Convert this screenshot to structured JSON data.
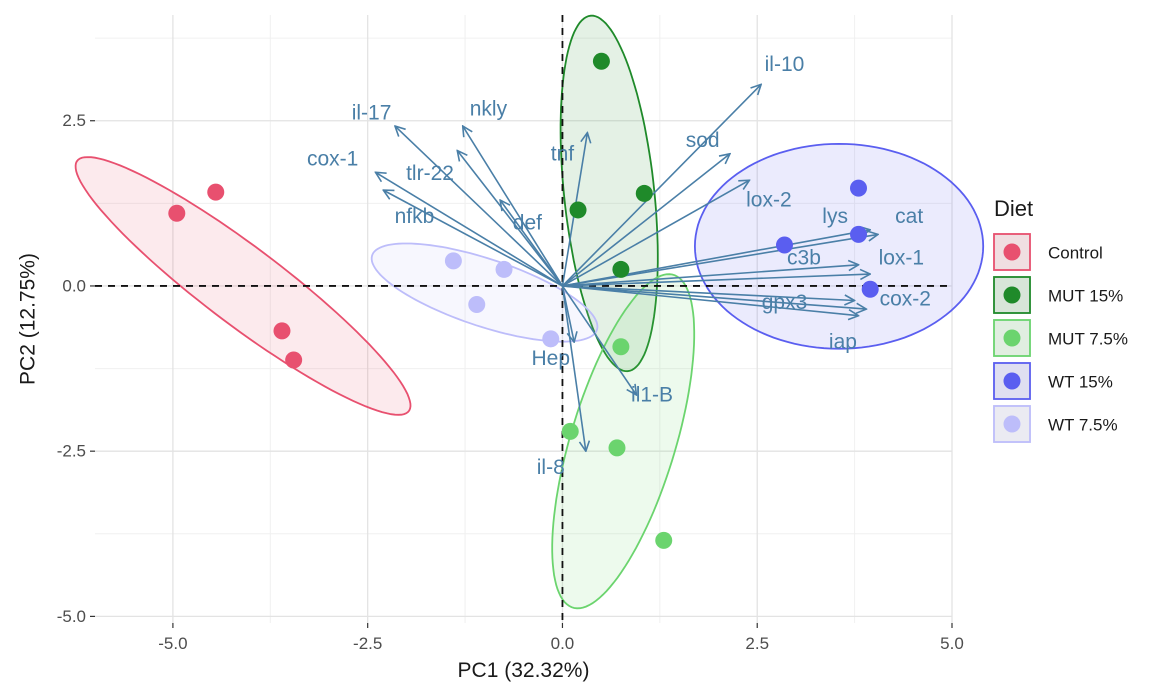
{
  "chart_data": {
    "type": "scatter",
    "subtype": "pca-biplot",
    "xlabel": "PC1 (32.32%)",
    "ylabel": "PC2 (12.75%)",
    "xlim": [
      -6,
      5
    ],
    "ylim": [
      -5.1,
      4.1
    ],
    "xticks": [
      -5.0,
      -2.5,
      0.0,
      2.5,
      5.0
    ],
    "yticks": [
      -5.0,
      -2.5,
      0.0,
      2.5
    ],
    "xtick_labels": [
      "-5.0",
      "-2.5",
      "0.0",
      "2.5",
      "5.0"
    ],
    "ytick_labels": [
      "-5.0",
      "-2.5",
      "0.0",
      "2.5"
    ],
    "grid": true,
    "reference_lines": {
      "x": 0,
      "y": 0,
      "style": "dashed"
    },
    "legend": {
      "title": "Diet",
      "position": "right"
    },
    "series": [
      {
        "name": "Control",
        "color": "#e8506f",
        "points": [
          [
            -4.95,
            1.1
          ],
          [
            -4.45,
            1.42
          ],
          [
            -3.6,
            -0.68
          ],
          [
            -3.45,
            -1.12
          ]
        ],
        "ellipse": {
          "center": [
            -4.1,
            0.0
          ],
          "semi_major": 2.85,
          "semi_minor": 0.55,
          "angle_deg": -42
        }
      },
      {
        "name": "MUT 15%",
        "color": "#1f8a2a",
        "points": [
          [
            0.5,
            3.4
          ],
          [
            0.2,
            1.15
          ],
          [
            1.05,
            1.4
          ],
          [
            0.75,
            0.25
          ]
        ],
        "ellipse": {
          "center": [
            0.6,
            1.4
          ],
          "semi_major": 2.7,
          "semi_minor": 0.58,
          "angle_deg": 95
        }
      },
      {
        "name": "MUT 7.5%",
        "color": "#6bd46e",
        "points": [
          [
            0.75,
            -0.92
          ],
          [
            0.1,
            -2.2
          ],
          [
            0.7,
            -2.45
          ],
          [
            1.3,
            -3.85
          ]
        ],
        "ellipse": {
          "center": [
            0.78,
            -2.35
          ],
          "semi_major": 2.6,
          "semi_minor": 0.68,
          "angle_deg": 76
        }
      },
      {
        "name": "WT 15%",
        "color": "#5a5ef0",
        "points": [
          [
            3.8,
            1.48
          ],
          [
            3.8,
            0.78
          ],
          [
            2.85,
            0.62
          ],
          [
            3.95,
            -0.05
          ]
        ],
        "ellipse": {
          "center": [
            3.55,
            0.6
          ],
          "semi_major": 1.85,
          "semi_minor": 1.55,
          "angle_deg": 0
        }
      },
      {
        "name": "WT 7.5%",
        "color": "#bdbdfa",
        "points": [
          [
            -1.4,
            0.38
          ],
          [
            -0.75,
            0.25
          ],
          [
            -1.1,
            -0.28
          ],
          [
            -0.15,
            -0.8
          ]
        ],
        "ellipse": {
          "center": [
            -1.0,
            -0.1
          ],
          "semi_major": 1.55,
          "semi_minor": 0.5,
          "angle_deg": -22
        }
      }
    ],
    "loadings": [
      {
        "name": "il-10",
        "end": [
          2.55,
          3.05
        ],
        "label": [
          2.85,
          3.35
        ]
      },
      {
        "name": "sod",
        "end": [
          2.15,
          2.0
        ],
        "label": [
          1.8,
          2.2
        ]
      },
      {
        "name": "lox-2",
        "end": [
          2.4,
          1.6
        ],
        "label": [
          2.65,
          1.3
        ]
      },
      {
        "name": "tnf",
        "end": [
          0.32,
          2.32
        ],
        "label": [
          0.0,
          2.0
        ]
      },
      {
        "name": "il-17",
        "end": [
          -2.15,
          2.42
        ],
        "label": [
          -2.45,
          2.62
        ]
      },
      {
        "name": "nkly",
        "end": [
          -1.28,
          2.42
        ],
        "label": [
          -0.95,
          2.68
        ]
      },
      {
        "name": "cox-1",
        "end": [
          -2.4,
          1.72
        ],
        "label": [
          -2.95,
          1.92
        ]
      },
      {
        "name": "tlr-22",
        "end": [
          -1.35,
          2.05
        ],
        "label": [
          -1.7,
          1.7
        ]
      },
      {
        "name": "nfkb",
        "end": [
          -2.3,
          1.45
        ],
        "label": [
          -1.9,
          1.05
        ]
      },
      {
        "name": "def",
        "end": [
          -0.8,
          1.3
        ],
        "label": [
          -0.45,
          0.95
        ]
      },
      {
        "name": "lys",
        "end": [
          3.95,
          0.85
        ],
        "label": [
          3.5,
          1.05
        ]
      },
      {
        "name": "cat",
        "end": [
          4.05,
          0.78
        ],
        "label": [
          4.45,
          1.05
        ]
      },
      {
        "name": "c3b",
        "end": [
          3.8,
          0.32
        ],
        "label": [
          3.1,
          0.42
        ]
      },
      {
        "name": "lox-1",
        "end": [
          3.95,
          0.18
        ],
        "label": [
          4.35,
          0.42
        ]
      },
      {
        "name": "gpx3",
        "end": [
          3.75,
          -0.22
        ],
        "label": [
          2.85,
          -0.25
        ]
      },
      {
        "name": "cox-2",
        "end": [
          3.9,
          -0.35
        ],
        "label": [
          4.4,
          -0.2
        ]
      },
      {
        "name": "iap",
        "end": [
          3.8,
          -0.45
        ],
        "label": [
          3.6,
          -0.85
        ]
      },
      {
        "name": "Hep",
        "end": [
          0.15,
          -0.85
        ],
        "label": [
          -0.15,
          -1.1
        ]
      },
      {
        "name": "il1-B",
        "end": [
          0.95,
          -1.65
        ],
        "label": [
          1.15,
          -1.65
        ]
      },
      {
        "name": "il-8",
        "end": [
          0.3,
          -2.5
        ],
        "label": [
          -0.15,
          -2.75
        ]
      }
    ],
    "loading_color": "#4a7fa7"
  }
}
